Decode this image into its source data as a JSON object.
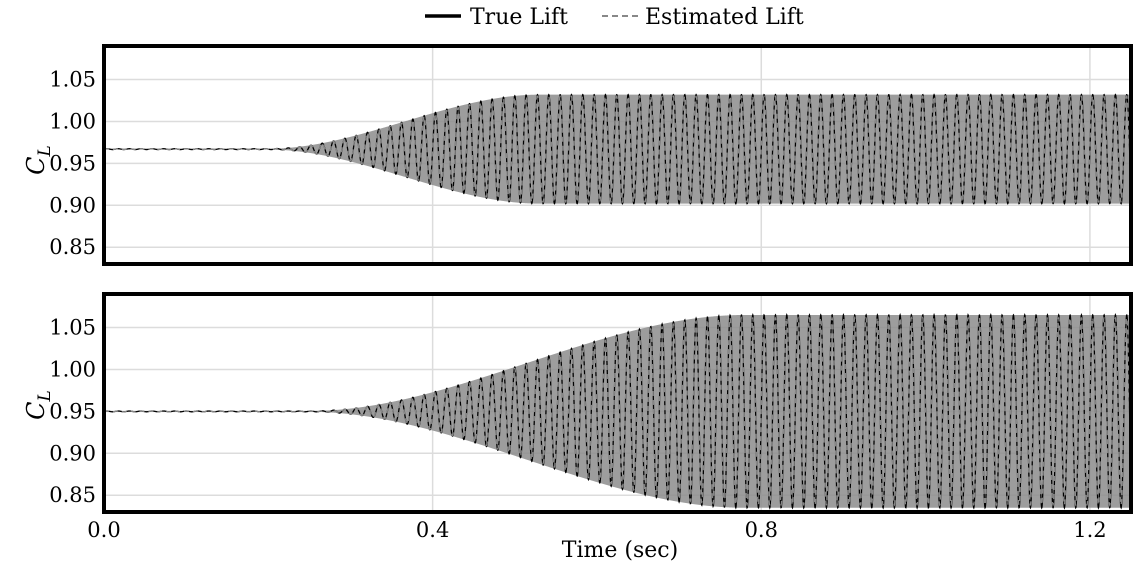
{
  "legend": {
    "placement": "top-center",
    "entries": [
      {
        "label": "True Lift",
        "style": "solid",
        "color": "#000000"
      },
      {
        "label": "Estimated Lift",
        "style": "dashed",
        "color": "#888888"
      }
    ]
  },
  "xlabel": "Time (sec)",
  "ylabel_main": "C",
  "ylabel_sub": "L",
  "colors": {
    "true_line": "#000000",
    "estimated_line": "#888888",
    "envelope_fill": "#8c8c8c",
    "grid": "#dcdcdc"
  },
  "chart_data": [
    {
      "type": "line",
      "xlim": [
        0.0,
        1.25
      ],
      "ylim": [
        0.83,
        1.09
      ],
      "x_ticks": [
        0.4,
        0.8,
        1.2
      ],
      "y_ticks": [
        {
          "value": 0.85,
          "label": "0.85"
        },
        {
          "value": 0.9,
          "label": "0.90"
        },
        {
          "value": 0.95,
          "label": "0.95"
        },
        {
          "value": 1.0,
          "label": "1.00"
        },
        {
          "value": 1.05,
          "label": "1.05"
        }
      ],
      "grid": true,
      "baseline": 0.967,
      "growth": {
        "amp_start": 0.0005,
        "amp_end": 0.065,
        "t_start": 0.2,
        "t_end": 0.53
      },
      "oscillation_frequency_hz": 72.5,
      "series": [
        {
          "name": "True Lift",
          "role": "true"
        },
        {
          "name": "Estimated Lift",
          "role": "estimated"
        }
      ]
    },
    {
      "type": "line",
      "xlim": [
        0.0,
        1.25
      ],
      "ylim": [
        0.83,
        1.09
      ],
      "x_ticks": [
        {
          "value": 0.0,
          "label": "0.0"
        },
        {
          "value": 0.4,
          "label": "0.4"
        },
        {
          "value": 0.8,
          "label": "0.8"
        },
        {
          "value": 1.2,
          "label": "1.2"
        }
      ],
      "y_ticks": [
        {
          "value": 0.85,
          "label": "0.85"
        },
        {
          "value": 0.9,
          "label": "0.90"
        },
        {
          "value": 0.95,
          "label": "0.95"
        },
        {
          "value": 1.0,
          "label": "1.00"
        },
        {
          "value": 1.05,
          "label": "1.05"
        }
      ],
      "grid": true,
      "baseline": 0.95,
      "growth": {
        "amp_start": 0.0005,
        "amp_end": 0.115,
        "t_start": 0.25,
        "t_end": 0.78
      },
      "oscillation_frequency_hz": 72.5,
      "series": [
        {
          "name": "True Lift",
          "role": "true"
        },
        {
          "name": "Estimated Lift",
          "role": "estimated"
        }
      ]
    }
  ]
}
